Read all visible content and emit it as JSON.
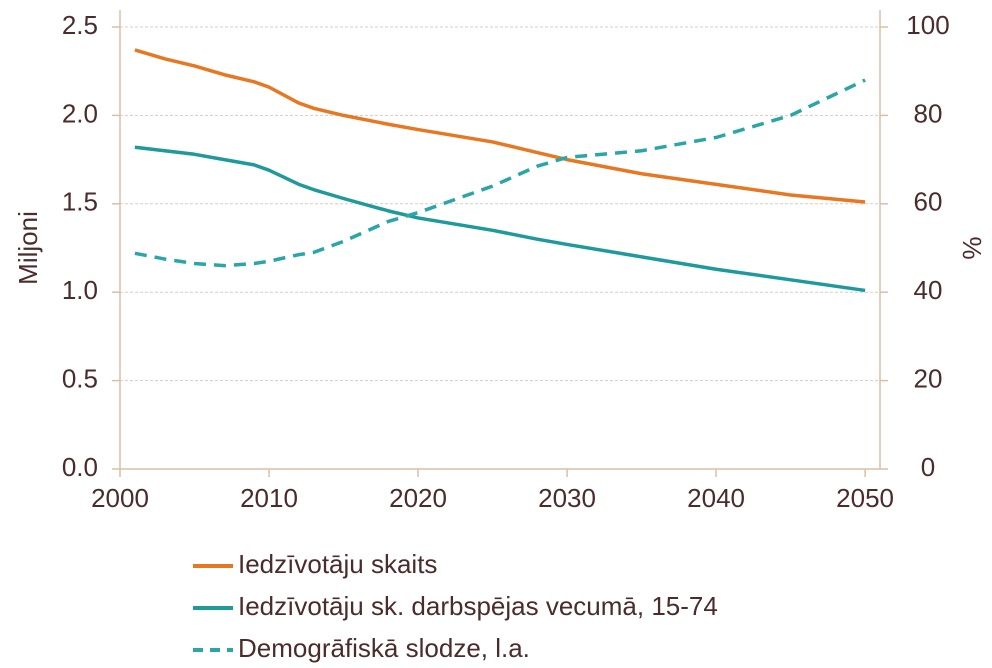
{
  "chart_data": {
    "type": "line",
    "ylabel": "Miljoni",
    "y2label": "%",
    "x": [
      2001,
      2003,
      2005,
      2007,
      2009,
      2010,
      2012,
      2013,
      2015,
      2018,
      2020,
      2025,
      2028,
      2030,
      2035,
      2040,
      2045,
      2050
    ],
    "xlim": [
      2000,
      2051
    ],
    "xticks": [
      2000,
      2010,
      2020,
      2030,
      2040,
      2050
    ],
    "ylim": [
      0,
      2.5
    ],
    "yticks": [
      {
        "value": 0,
        "label": "0.0"
      },
      0.5,
      {
        "value": 1,
        "label": "1.0"
      },
      1.5,
      {
        "value": 2,
        "label": "2.0"
      },
      2.5
    ],
    "y2lim": [
      0,
      100
    ],
    "y2ticks": [
      0,
      20,
      40,
      60,
      80,
      100
    ],
    "grid": true,
    "series": [
      {
        "name": "Iedzīvotāju skaits",
        "color": "#e87722",
        "line_style": "solid",
        "values": [
          2.37,
          2.32,
          2.28,
          2.23,
          2.19,
          2.16,
          2.07,
          2.04,
          2.0,
          1.95,
          1.92,
          1.85,
          1.79,
          1.75,
          1.67,
          1.61,
          1.55,
          1.51
        ]
      },
      {
        "name": "Iedzīvotāju sk. darbspējas vecumā, 15-74",
        "color": "#1e9a9c",
        "line_style": "solid",
        "values": [
          1.82,
          1.8,
          1.78,
          1.75,
          1.72,
          1.69,
          1.61,
          1.58,
          1.53,
          1.46,
          1.42,
          1.35,
          1.3,
          1.27,
          1.2,
          1.13,
          1.07,
          1.01
        ]
      },
      {
        "name": "Demogrāfiskā slodze, l.a.",
        "color": "#2aa5a8",
        "line_style": "dashed",
        "axis": "y2",
        "values": [
          48.8,
          47.5,
          46.5,
          46,
          46.5,
          47,
          48.5,
          49,
          51.5,
          56,
          58,
          64,
          68.5,
          70.5,
          72,
          75,
          80,
          88
        ]
      }
    ]
  }
}
